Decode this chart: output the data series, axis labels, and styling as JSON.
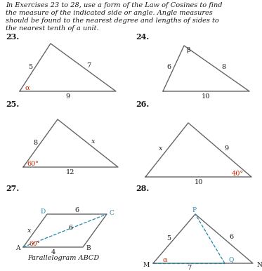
{
  "header_lines": [
    "In Exercises 23 to 28, use a form of the Law of Cosines to find",
    "the measure of the indicated side or angle. Angle measures",
    "should be found to the nearest degree and lengths of sides to",
    "the nearest tenth of a unit."
  ],
  "bg_color": "white",
  "text_color": "#1a1a1a",
  "red_color": "#cc2200",
  "blue_color": "#2288aa",
  "tri_color": "#666666",
  "dash_color": "#2288aa"
}
